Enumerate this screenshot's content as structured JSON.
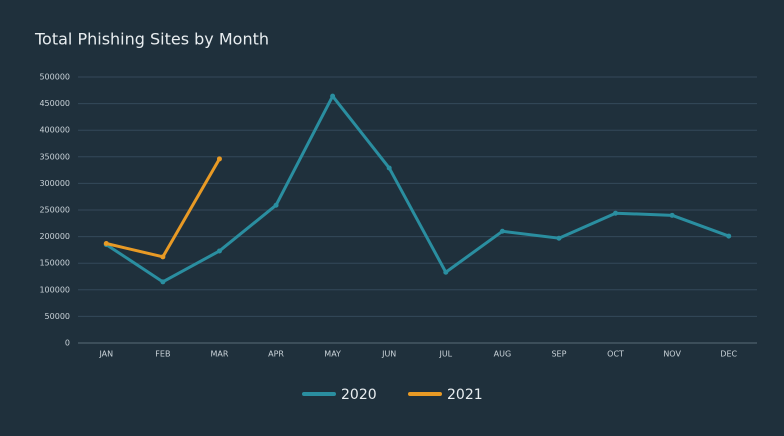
{
  "chart_data": {
    "type": "line",
    "title": "Total Phishing Sites by Month",
    "categories": [
      "JAN",
      "FEB",
      "MAR",
      "APR",
      "MAY",
      "JUN",
      "JUL",
      "AUG",
      "SEP",
      "OCT",
      "NOV",
      "DEC"
    ],
    "series": [
      {
        "name": "2020",
        "color": "#2a8ea0",
        "values": [
          185000,
          115000,
          173000,
          259000,
          464000,
          329000,
          133000,
          210000,
          197000,
          244000,
          240000,
          201000
        ]
      },
      {
        "name": "2021",
        "color": "#e89a25",
        "values": [
          187000,
          162000,
          346000,
          null,
          null,
          null,
          null,
          null,
          null,
          null,
          null,
          null
        ]
      }
    ],
    "ylim": [
      0,
      500000
    ],
    "yticks": [
      0,
      50000,
      100000,
      150000,
      200000,
      250000,
      300000,
      350000,
      400000,
      450000,
      500000
    ],
    "grid": true,
    "legend": "bottom"
  }
}
